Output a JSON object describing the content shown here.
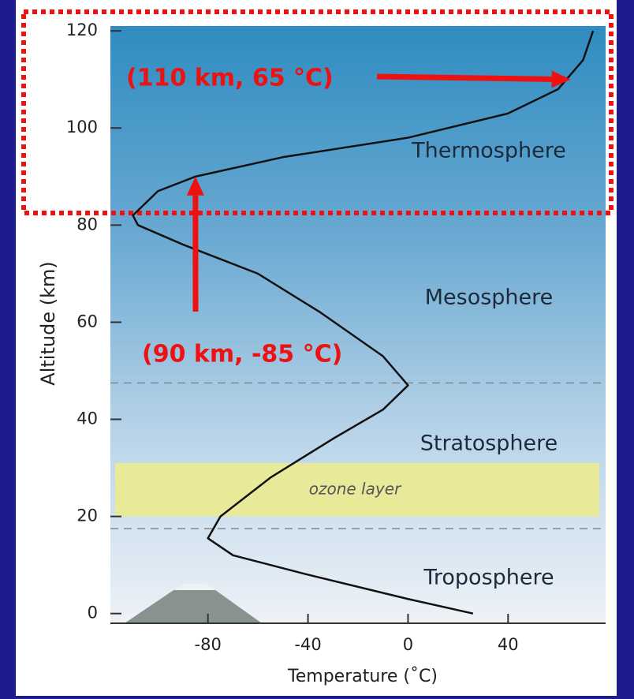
{
  "chart_data": {
    "type": "line",
    "x_label": "Temperature (˚C)",
    "y_label": "Altitude (km)",
    "xlim": [
      -119,
      79
    ],
    "ylim": [
      -2,
      121
    ],
    "xticks": [
      -80,
      -40,
      0,
      40
    ],
    "yticks": [
      0,
      20,
      40,
      60,
      80,
      100,
      120
    ],
    "series": [
      {
        "color": "#111111",
        "x": [
          26,
          0,
          -40,
          -70,
          -80,
          -75,
          -55,
          -30,
          -10,
          0,
          -10,
          -35,
          -60,
          -90,
          -108,
          -110,
          -100,
          -85,
          -50,
          0,
          40,
          60,
          70,
          74
        ],
        "values": [
          0,
          3,
          8,
          12,
          15.5,
          20,
          28,
          36,
          42,
          47,
          53,
          62,
          70,
          76,
          80,
          82,
          87,
          90,
          94,
          98,
          103,
          108,
          114,
          120
        ]
      }
    ],
    "boundaries": [
      17.5,
      47.5
    ],
    "bands": [
      {
        "label": "ozone layer",
        "range": [
          20,
          31
        ],
        "color": "#e8ea9a"
      }
    ],
    "layers": [
      "Thermosphere",
      "Mesosphere",
      "Stratosphere",
      "Troposphere"
    ],
    "annotations": [
      {
        "text": "(110 km, 65 °C)",
        "point": [
          65,
          110
        ],
        "color": "#ee1111"
      },
      {
        "text": "(90 km, -85 °C)",
        "point": [
          -85,
          90
        ],
        "color": "#ee1111"
      }
    ]
  }
}
